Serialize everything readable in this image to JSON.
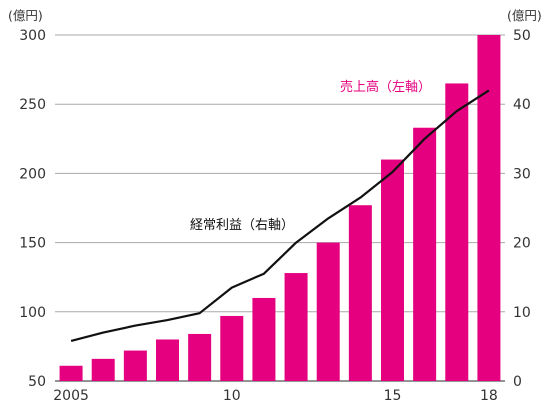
{
  "chart_data": {
    "type": "bar",
    "x": [
      2005,
      2006,
      2007,
      2008,
      2009,
      2010,
      2011,
      2012,
      2013,
      2014,
      2015,
      2016,
      2017,
      2018
    ],
    "series": [
      {
        "name": "売上高（左軸）",
        "type": "bar",
        "axis": "left",
        "color": "#e4007f",
        "values": [
          61,
          66,
          72,
          80,
          84,
          97,
          110,
          128,
          150,
          177,
          210,
          233,
          265,
          300
        ]
      },
      {
        "name": "経常利益（右軸）",
        "type": "line",
        "axis": "right",
        "color": "#111111",
        "values": [
          5.8,
          7.0,
          8.0,
          8.8,
          9.8,
          13.5,
          15.5,
          20.0,
          23.5,
          26.5,
          30.2,
          35.0,
          39.0,
          42.0
        ]
      }
    ],
    "y_left": {
      "unit": "(億円)",
      "ylim": [
        50,
        300
      ],
      "ticks": [
        "300",
        "250",
        "200",
        "150",
        "100",
        "50"
      ]
    },
    "y_right": {
      "unit": "(億円)",
      "ylim": [
        0,
        50
      ],
      "ticks": [
        "50",
        "40",
        "30",
        "20",
        "10",
        "0"
      ]
    },
    "x_ticks": [
      {
        "value": 2005,
        "label": "2005"
      },
      {
        "value": 2010,
        "label": "10"
      },
      {
        "value": 2015,
        "label": "15"
      },
      {
        "value": 2018,
        "label": "18"
      }
    ],
    "grid": "horizontal",
    "annotations": {
      "sales_label": "売上高（左軸）",
      "profit_label": "経常利益（右軸）"
    }
  }
}
